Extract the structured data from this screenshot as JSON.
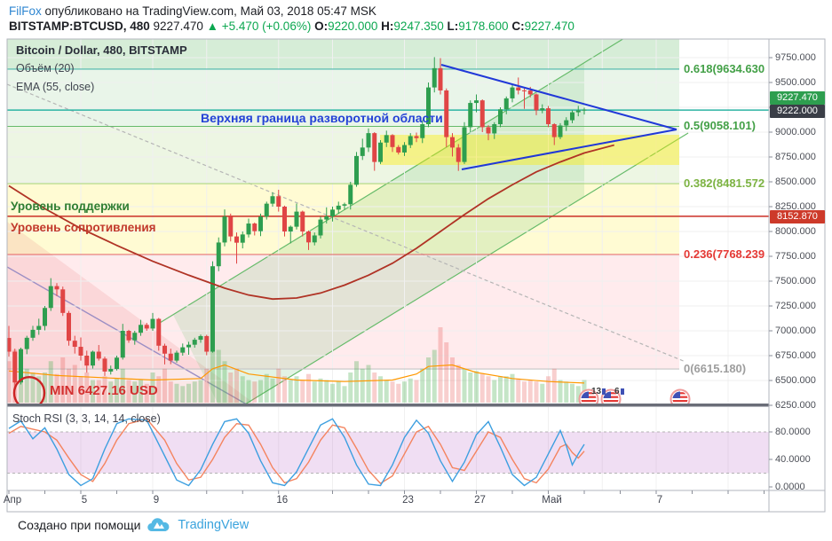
{
  "header": {
    "author": "FilFox",
    "published": " опубликовано на TradingView.com, Май 03, 2018 05:47 MSK",
    "symbol": "BITSTAMP:BTCUSD, 480",
    "last_price": "9227.470",
    "change_arrow": "▲",
    "change": "+5.470 (+0.06%)",
    "open_label": "O:",
    "open_value": "9220.000",
    "high_label": "H:",
    "high_value": "9247.350",
    "low_label": "L:",
    "low_value": "9178.600",
    "close_label": "C:",
    "close_value": "9227.470"
  },
  "legend": {
    "title": "Bitcoin / Dollar, 480, BITSTAMP",
    "volume": "Объём (20)",
    "ema": "EMA (55, close)"
  },
  "annotations": {
    "upper_boundary": "Верхняя граница разворотной области",
    "support": "Уровень поддержки",
    "resistance": "Уровень сопротивления",
    "min": "MIN 6427.16 USD"
  },
  "price_badges": {
    "last": {
      "text": "9227.470",
      "bg": "#2e9e4f"
    },
    "line": {
      "text": "9222.000",
      "bg": "#3a3e47"
    },
    "level": {
      "text": "8152.870",
      "bg": "#cd3a2a"
    }
  },
  "event_badges": {
    "count1": "13",
    "count2": "6"
  },
  "stoch_legend": "Stoch RSI (3, 3, 14, 14, close)",
  "footer": {
    "created": "Создано при помощи",
    "brand": "TradingView"
  },
  "axes": {
    "price_ticks": [
      "9750.000",
      "9500.000",
      "9250.000",
      "9000.000",
      "8750.000",
      "8500.000",
      "8250.000",
      "8000.000",
      "7750.000",
      "7500.000",
      "7250.000",
      "7000.000",
      "6750.000",
      "6500.000",
      "6250.000"
    ],
    "time_ticks": [
      {
        "label": "Апр",
        "day": 0
      },
      {
        "label": "5",
        "day": 4
      },
      {
        "label": "9",
        "day": 8
      },
      {
        "label": "16",
        "day": 15
      },
      {
        "label": "23",
        "day": 22
      },
      {
        "label": "27",
        "day": 26
      },
      {
        "label": "Май",
        "day": 30
      },
      {
        "label": "7",
        "day": 36
      }
    ],
    "stoch_ticks": [
      {
        "label": "80.0000",
        "value": 80
      },
      {
        "label": "40.0000",
        "value": 40
      },
      {
        "label": "0.0000",
        "value": 0
      }
    ]
  },
  "chart_data": {
    "type": "candlestick",
    "title": "Bitcoin / Dollar, 480, BITSTAMP",
    "symbol": "BITSTAMP:BTCUSD",
    "interval": "480",
    "price_axis_range": [
      6250,
      9750
    ],
    "colors": {
      "up": "#2e9e4f",
      "down": "#e04545",
      "vol_up": "rgba(76,175,80,0.32)",
      "vol_down": "rgba(229,83,80,0.28)",
      "ema": "#b03325",
      "vol_ma": "#ff9800",
      "teal_line": "#2bb3a3",
      "red_line": "#cc2f26",
      "triangle": "#2038d8",
      "ellipse": "#cc2424",
      "gray_trend": "#b5b5b5",
      "purple_trend": "#9b8ec4",
      "channel": "#66bb6a",
      "channel_fill": "rgba(129,199,132,0.22)",
      "bear_channel_fill": "rgba(229,115,115,0.16)",
      "yellow_zone": "rgba(255,238,0,0.40)",
      "stoch_k": "#3d9fe0",
      "stoch_d": "#f4845f",
      "stoch_band": "rgba(186,104,200,0.22)"
    },
    "horizontal_lines": [
      {
        "name": "upper-reversal-boundary",
        "price": 9222.0
      },
      {
        "name": "support-resistance",
        "price": 8152.87
      }
    ],
    "fib_levels": [
      {
        "label": "0.618(9634.630",
        "price": 9634.63,
        "text_color": "#43a047",
        "line_color": "#4db6ac"
      },
      {
        "label": "0.5(9058.101)",
        "price": 9058.101,
        "text_color": "#43a047",
        "line_color": "#66bb6a"
      },
      {
        "label": "0.382(8481.572",
        "price": 8481.572,
        "text_color": "#7cb342",
        "line_color": "#aed581"
      },
      {
        "label": "0.236(7768.239",
        "price": 7768.239,
        "text_color": "#e53935",
        "line_color": "#e57373"
      },
      {
        "label": "0(6615.180)",
        "price": 6615.18,
        "text_color": "#9e9e9e",
        "line_color": "#c5c5c5"
      }
    ],
    "band_fills": [
      "rgba(165,214,167,0.45)",
      "rgba(200,230,201,0.40)",
      "rgba(220,237,200,0.50)",
      "rgba(255,249,196,0.75)",
      "rgba(255,205,210,0.40)"
    ],
    "min_price_marker": 6427.16,
    "candles_ohlcv": [
      [
        6928,
        7049,
        6740,
        6790,
        55
      ],
      [
        6790,
        6820,
        6425,
        6480,
        70
      ],
      [
        6480,
        6830,
        6460,
        6816,
        60
      ],
      [
        6816,
        6950,
        6765,
        6930,
        45
      ],
      [
        6930,
        7050,
        6900,
        7010,
        40
      ],
      [
        7010,
        7122,
        6960,
        7049,
        35
      ],
      [
        7049,
        7250,
        7005,
        7230,
        40
      ],
      [
        7230,
        7530,
        7200,
        7450,
        55
      ],
      [
        7450,
        7480,
        7350,
        7417,
        38
      ],
      [
        7417,
        7445,
        7150,
        7180,
        60
      ],
      [
        7180,
        7200,
        6850,
        6900,
        45
      ],
      [
        6900,
        6950,
        6771,
        6839,
        50
      ],
      [
        6839,
        6933,
        6700,
        6750,
        35
      ],
      [
        6750,
        6800,
        6579,
        6650,
        40
      ],
      [
        6650,
        6800,
        6620,
        6790,
        30
      ],
      [
        6790,
        6857,
        6700,
        6720,
        30
      ],
      [
        6720,
        6740,
        6546,
        6590,
        35
      ],
      [
        6590,
        6650,
        6560,
        6616,
        28
      ],
      [
        6616,
        6750,
        6600,
        6730,
        32
      ],
      [
        6730,
        7070,
        6710,
        7000,
        45
      ],
      [
        7000,
        7010,
        6880,
        6904,
        30
      ],
      [
        6904,
        7000,
        6860,
        6980,
        28
      ],
      [
        6980,
        7111,
        6950,
        7060,
        30
      ],
      [
        7060,
        7080,
        7000,
        7023,
        25
      ],
      [
        7023,
        7180,
        7000,
        7120,
        40
      ],
      [
        7120,
        7130,
        6800,
        6850,
        35
      ],
      [
        6850,
        6870,
        6662,
        6770,
        45
      ],
      [
        6770,
        6820,
        6664,
        6700,
        28
      ],
      [
        6700,
        6800,
        6680,
        6780,
        25
      ],
      [
        6780,
        6872,
        6750,
        6834,
        22
      ],
      [
        6834,
        6890,
        6759,
        6860,
        25
      ],
      [
        6860,
        6930,
        6830,
        6910,
        28
      ],
      [
        6910,
        6962,
        6880,
        6947,
        30
      ],
      [
        6947,
        6960,
        6754,
        6790,
        45
      ],
      [
        6790,
        7700,
        6780,
        7650,
        85
      ],
      [
        7650,
        7940,
        7600,
        7889,
        70
      ],
      [
        7889,
        8222,
        7850,
        8150,
        55
      ],
      [
        8150,
        8180,
        7900,
        7950,
        40
      ],
      [
        7950,
        7990,
        7676,
        7887,
        45
      ],
      [
        7887,
        8000,
        7830,
        7970,
        35
      ],
      [
        7970,
        8130,
        7940,
        8080,
        30
      ],
      [
        8080,
        8090,
        7960,
        8003,
        28
      ],
      [
        8003,
        8180,
        7953,
        8150,
        30
      ],
      [
        8150,
        8300,
        8120,
        8280,
        38
      ],
      [
        8280,
        8394,
        8250,
        8355,
        32
      ],
      [
        8355,
        8420,
        8200,
        8250,
        45
      ],
      [
        8250,
        8260,
        7950,
        8000,
        35
      ],
      [
        8000,
        8060,
        7880,
        8048,
        30
      ],
      [
        8048,
        8281,
        8020,
        8200,
        35
      ],
      [
        8200,
        8210,
        7950,
        8000,
        30
      ],
      [
        8000,
        8010,
        7814,
        7890,
        38
      ],
      [
        7890,
        7990,
        7860,
        7960,
        28
      ],
      [
        7960,
        8150,
        7930,
        8120,
        32
      ],
      [
        8120,
        8243,
        8080,
        8152,
        30
      ],
      [
        8152,
        8250,
        8101,
        8220,
        25
      ],
      [
        8220,
        8300,
        8180,
        8260,
        28
      ],
      [
        8260,
        8290,
        8220,
        8274,
        22
      ],
      [
        8274,
        8500,
        8221,
        8470,
        40
      ],
      [
        8470,
        8800,
        8450,
        8760,
        55
      ],
      [
        8760,
        8934,
        8720,
        8845,
        45
      ],
      [
        8845,
        9038,
        8800,
        8990,
        50
      ],
      [
        8990,
        9000,
        8611,
        8700,
        40
      ],
      [
        8700,
        8920,
        8680,
        8895,
        35
      ],
      [
        8895,
        9015,
        8850,
        8970,
        30
      ],
      [
        8970,
        8980,
        8800,
        8850,
        28
      ],
      [
        8850,
        8870,
        8775,
        8795,
        25
      ],
      [
        8795,
        8900,
        8760,
        8870,
        28
      ],
      [
        8870,
        8990,
        8840,
        8960,
        32
      ],
      [
        8960,
        8995,
        8900,
        8940,
        30
      ],
      [
        8940,
        9120,
        8890,
        9080,
        45
      ],
      [
        9080,
        9500,
        9050,
        9450,
        60
      ],
      [
        9450,
        9755,
        9400,
        9644,
        70
      ],
      [
        9644,
        9745,
        9380,
        9420,
        100
      ],
      [
        9420,
        9440,
        8850,
        8950,
        80
      ],
      [
        8950,
        8990,
        8755,
        8845,
        60
      ],
      [
        8845,
        8880,
        8610,
        8700,
        50
      ],
      [
        8700,
        9100,
        8680,
        9050,
        45
      ],
      [
        9050,
        9320,
        9000,
        9294,
        40
      ],
      [
        9294,
        9380,
        9200,
        9320,
        42
      ],
      [
        9320,
        9330,
        9000,
        9050,
        38
      ],
      [
        9050,
        9070,
        8918,
        8987,
        35
      ],
      [
        8987,
        9100,
        8931,
        9080,
        30
      ],
      [
        9080,
        9250,
        9050,
        9230,
        35
      ],
      [
        9230,
        9359,
        9180,
        9340,
        35
      ],
      [
        9340,
        9480,
        9300,
        9450,
        38
      ],
      [
        9450,
        9550,
        9380,
        9420,
        32
      ],
      [
        9420,
        9440,
        9234,
        9419,
        28
      ],
      [
        9419,
        9456,
        9350,
        9380,
        30
      ],
      [
        9380,
        9390,
        9171,
        9220,
        28
      ],
      [
        9220,
        9280,
        9190,
        9240,
        25
      ],
      [
        9240,
        9263,
        9050,
        9080,
        35
      ],
      [
        9080,
        9090,
        8870,
        8950,
        45
      ],
      [
        8950,
        9090,
        8930,
        9067,
        30
      ],
      [
        9067,
        9150,
        9012,
        9120,
        28
      ],
      [
        9120,
        9220,
        9090,
        9200,
        25
      ],
      [
        9200,
        9265,
        9160,
        9219,
        22
      ],
      [
        9220,
        9247,
        9178,
        9227,
        30
      ]
    ],
    "ema55": [
      [
        0,
        8460
      ],
      [
        6,
        8230
      ],
      [
        12,
        8030
      ],
      [
        18,
        7860
      ],
      [
        24,
        7700
      ],
      [
        30,
        7560
      ],
      [
        36,
        7430
      ],
      [
        40,
        7360
      ],
      [
        44,
        7320
      ],
      [
        48,
        7330
      ],
      [
        52,
        7380
      ],
      [
        56,
        7460
      ],
      [
        60,
        7560
      ],
      [
        64,
        7680
      ],
      [
        68,
        7830
      ],
      [
        72,
        8000
      ],
      [
        76,
        8170
      ],
      [
        80,
        8330
      ],
      [
        84,
        8470
      ],
      [
        88,
        8600
      ],
      [
        92,
        8700
      ],
      [
        96,
        8790
      ],
      [
        101,
        8870
      ]
    ],
    "volume_ma20": [
      [
        0,
        42
      ],
      [
        8,
        36
      ],
      [
        16,
        33
      ],
      [
        24,
        30
      ],
      [
        32,
        32
      ],
      [
        34,
        45
      ],
      [
        36,
        50
      ],
      [
        40,
        38
      ],
      [
        48,
        30
      ],
      [
        56,
        28
      ],
      [
        64,
        30
      ],
      [
        68,
        38
      ],
      [
        70,
        48
      ],
      [
        74,
        50
      ],
      [
        78,
        40
      ],
      [
        84,
        32
      ],
      [
        90,
        28
      ],
      [
        96,
        26
      ]
    ],
    "stoch_rsi": {
      "k": [
        [
          0,
          85
        ],
        [
          2,
          96
        ],
        [
          4,
          70
        ],
        [
          6,
          86
        ],
        [
          8,
          55
        ],
        [
          10,
          18
        ],
        [
          12,
          2
        ],
        [
          14,
          12
        ],
        [
          16,
          55
        ],
        [
          18,
          92
        ],
        [
          20,
          99
        ],
        [
          23,
          97
        ],
        [
          26,
          45
        ],
        [
          28,
          10
        ],
        [
          30,
          2
        ],
        [
          32,
          25
        ],
        [
          34,
          62
        ],
        [
          36,
          95
        ],
        [
          38,
          99
        ],
        [
          40,
          78
        ],
        [
          42,
          38
        ],
        [
          44,
          6
        ],
        [
          46,
          2
        ],
        [
          48,
          22
        ],
        [
          50,
          56
        ],
        [
          52,
          90
        ],
        [
          54,
          99
        ],
        [
          56,
          72
        ],
        [
          58,
          32
        ],
        [
          60,
          4
        ],
        [
          62,
          2
        ],
        [
          64,
          32
        ],
        [
          66,
          72
        ],
        [
          68,
          97
        ],
        [
          70,
          78
        ],
        [
          72,
          38
        ],
        [
          74,
          8
        ],
        [
          76,
          36
        ],
        [
          78,
          76
        ],
        [
          80,
          95
        ],
        [
          82,
          58
        ],
        [
          84,
          18
        ],
        [
          86,
          2
        ],
        [
          88,
          14
        ],
        [
          90,
          48
        ],
        [
          92,
          82
        ],
        [
          93,
          60
        ],
        [
          94,
          32
        ],
        [
          95,
          48
        ],
        [
          96,
          62
        ]
      ],
      "d": [
        [
          0,
          78
        ],
        [
          2,
          88
        ],
        [
          4,
          84
        ],
        [
          6,
          80
        ],
        [
          8,
          68
        ],
        [
          10,
          42
        ],
        [
          12,
          18
        ],
        [
          14,
          8
        ],
        [
          16,
          34
        ],
        [
          18,
          68
        ],
        [
          20,
          92
        ],
        [
          23,
          99
        ],
        [
          26,
          68
        ],
        [
          28,
          34
        ],
        [
          30,
          10
        ],
        [
          32,
          14
        ],
        [
          34,
          40
        ],
        [
          36,
          72
        ],
        [
          38,
          92
        ],
        [
          40,
          90
        ],
        [
          42,
          62
        ],
        [
          44,
          28
        ],
        [
          46,
          6
        ],
        [
          48,
          12
        ],
        [
          50,
          36
        ],
        [
          52,
          68
        ],
        [
          54,
          90
        ],
        [
          56,
          86
        ],
        [
          58,
          56
        ],
        [
          60,
          24
        ],
        [
          62,
          5
        ],
        [
          64,
          16
        ],
        [
          66,
          48
        ],
        [
          68,
          80
        ],
        [
          70,
          88
        ],
        [
          72,
          62
        ],
        [
          74,
          28
        ],
        [
          76,
          24
        ],
        [
          78,
          52
        ],
        [
          80,
          80
        ],
        [
          82,
          72
        ],
        [
          84,
          40
        ],
        [
          86,
          12
        ],
        [
          88,
          6
        ],
        [
          90,
          26
        ],
        [
          92,
          58
        ],
        [
          93,
          62
        ],
        [
          94,
          50
        ],
        [
          95,
          42
        ],
        [
          96,
          52
        ]
      ]
    }
  }
}
